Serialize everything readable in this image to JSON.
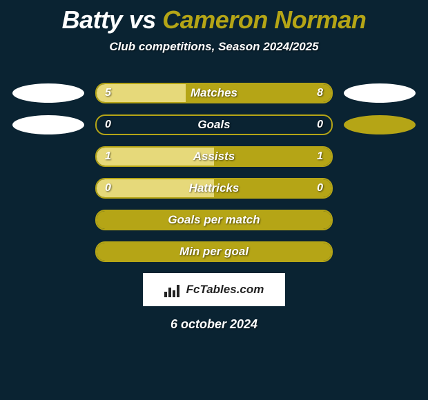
{
  "title": {
    "player1": "Batty",
    "vs": "vs",
    "player2": "Cameron Norman",
    "player1_color": "#ffffff",
    "player2_color": "#b5a516"
  },
  "subtitle": "Club competitions, Season 2024/2025",
  "background_color": "#0a2332",
  "accent_color": "#b5a516",
  "light_fill_color": "#e6d97a",
  "text_color": "#ffffff",
  "rows": [
    {
      "label": "Matches",
      "left_value": "5",
      "right_value": "8",
      "left_pct": 38,
      "right_pct": 62,
      "show_left_ellipse": true,
      "show_right_ellipse": true,
      "right_ellipse_color": "#ffffff"
    },
    {
      "label": "Goals",
      "left_value": "0",
      "right_value": "0",
      "left_pct": 0,
      "right_pct": 0,
      "show_left_ellipse": true,
      "show_right_ellipse": true,
      "right_ellipse_color": "#b5a516"
    },
    {
      "label": "Assists",
      "left_value": "1",
      "right_value": "1",
      "left_pct": 50,
      "right_pct": 50,
      "show_left_ellipse": false,
      "show_right_ellipse": false
    },
    {
      "label": "Hattricks",
      "left_value": "0",
      "right_value": "0",
      "left_pct": 50,
      "right_pct": 50,
      "show_left_ellipse": false,
      "show_right_ellipse": false
    },
    {
      "label": "Goals per match",
      "left_value": "",
      "right_value": "",
      "full_fill": true,
      "show_left_ellipse": false,
      "show_right_ellipse": false
    },
    {
      "label": "Min per goal",
      "left_value": "",
      "right_value": "",
      "full_fill": true,
      "show_left_ellipse": false,
      "show_right_ellipse": false
    }
  ],
  "brand": "FcTables.com",
  "date": "6 october 2024",
  "fonts": {
    "title_size": 36,
    "subtitle_size": 17,
    "label_size": 17,
    "value_size": 16,
    "brand_size": 17,
    "date_size": 18
  }
}
